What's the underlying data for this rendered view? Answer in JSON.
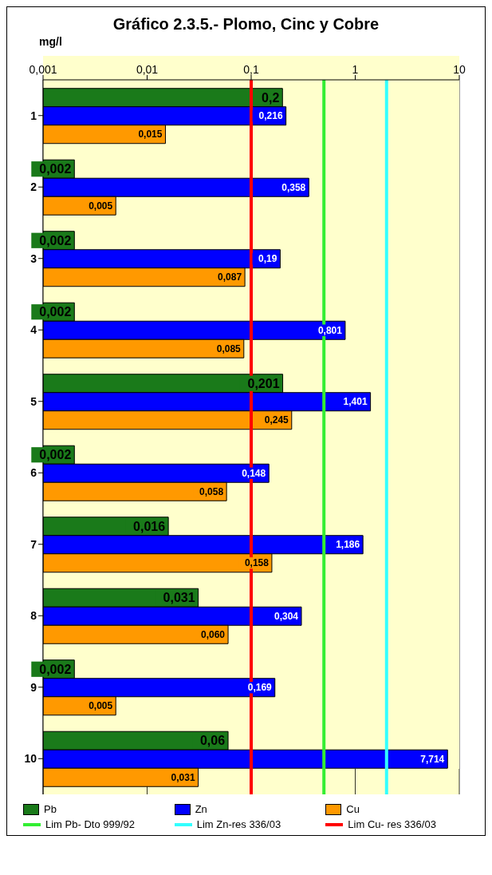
{
  "chart_data": {
    "type": "bar",
    "orientation": "horizontal",
    "title": "Gráfico 2.3.5.- Plomo, Cinc y Cobre",
    "xlabel": "mg/l",
    "categories": [
      "1",
      "2",
      "3",
      "4",
      "5",
      "6",
      "7",
      "8",
      "9",
      "10"
    ],
    "series": [
      {
        "name": "Pb",
        "color": "#1a7a1a",
        "values": [
          0.2,
          0.002,
          0.002,
          0.002,
          0.201,
          0.002,
          0.016,
          0.031,
          0.002,
          0.06
        ],
        "value_labels": [
          "0,2",
          "0,002",
          "0,002",
          "0,002",
          "0,201",
          "0,002",
          "0,016",
          "0,031",
          "0,002",
          "0,06"
        ]
      },
      {
        "name": "Zn",
        "color": "#0000ff",
        "values": [
          0.216,
          0.358,
          0.19,
          0.801,
          1.401,
          0.148,
          1.186,
          0.304,
          0.169,
          7.714
        ],
        "value_labels": [
          "0,216",
          "0,358",
          "0,19",
          "0,801",
          "1,401",
          "0,148",
          "1,186",
          "0,304",
          "0,169",
          "7,714"
        ]
      },
      {
        "name": "Cu",
        "color": "#ff9900",
        "values": [
          0.015,
          0.005,
          0.087,
          0.085,
          0.245,
          0.058,
          0.158,
          0.06,
          0.005,
          0.031
        ],
        "value_labels": [
          "0,015",
          "0,005",
          "0,087",
          "0,085",
          "0,245",
          "0,058",
          "0,158",
          "0,060",
          "0,005",
          "0,031"
        ]
      }
    ],
    "log": "x",
    "xlim": [
      0.001,
      10
    ],
    "xticks": [
      {
        "value": 0.001,
        "label": "0,001"
      },
      {
        "value": 0.01,
        "label": "0,01"
      },
      {
        "value": 0.1,
        "label": "0,1"
      },
      1,
      10
    ],
    "ref_lines": [
      {
        "axis": "x",
        "value": 0.5,
        "label": "Lim Pb- Dto 999/92",
        "color": "#33ee33"
      },
      {
        "axis": "x",
        "value": 2,
        "label": "Lim Zn-res 336/03",
        "color": "#33ffff"
      },
      {
        "axis": "x",
        "value": 0.1,
        "label": "Lim Cu- res 336/03",
        "color": "#ff0000"
      }
    ],
    "grid": "x",
    "legend": "bottom"
  }
}
